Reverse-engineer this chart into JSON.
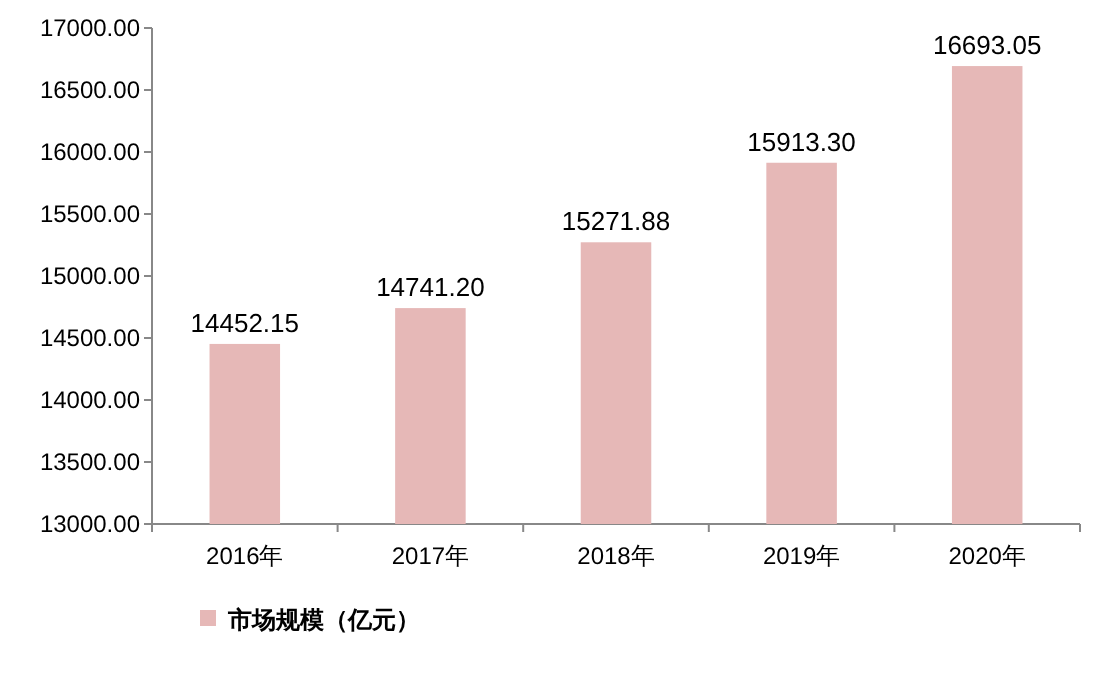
{
  "chart_data": {
    "type": "bar",
    "categories": [
      "2016年",
      "2017年",
      "2018年",
      "2019年",
      "2020年"
    ],
    "series": [
      {
        "name": "市场规模（亿元）",
        "color": "#e6b8b7",
        "values": [
          14452.15,
          14741.2,
          15271.88,
          15913.3,
          16693.05
        ]
      }
    ],
    "value_labels": [
      "14452.15",
      "14741.20",
      "15271.88",
      "15913.30",
      "16693.05"
    ],
    "ylim": [
      13000,
      17000
    ],
    "yticks": [
      {
        "value": 13000,
        "label": "13000.00"
      },
      {
        "value": 13500,
        "label": "13500.00"
      },
      {
        "value": 14000,
        "label": "14000.00"
      },
      {
        "value": 14500,
        "label": "14500.00"
      },
      {
        "value": 15000,
        "label": "15000.00"
      },
      {
        "value": 15500,
        "label": "15500.00"
      },
      {
        "value": 16000,
        "label": "16000.00"
      },
      {
        "value": 16500,
        "label": "16500.00"
      },
      {
        "value": 17000,
        "label": "17000.00"
      }
    ],
    "legend": "bottom left",
    "grid": false
  }
}
